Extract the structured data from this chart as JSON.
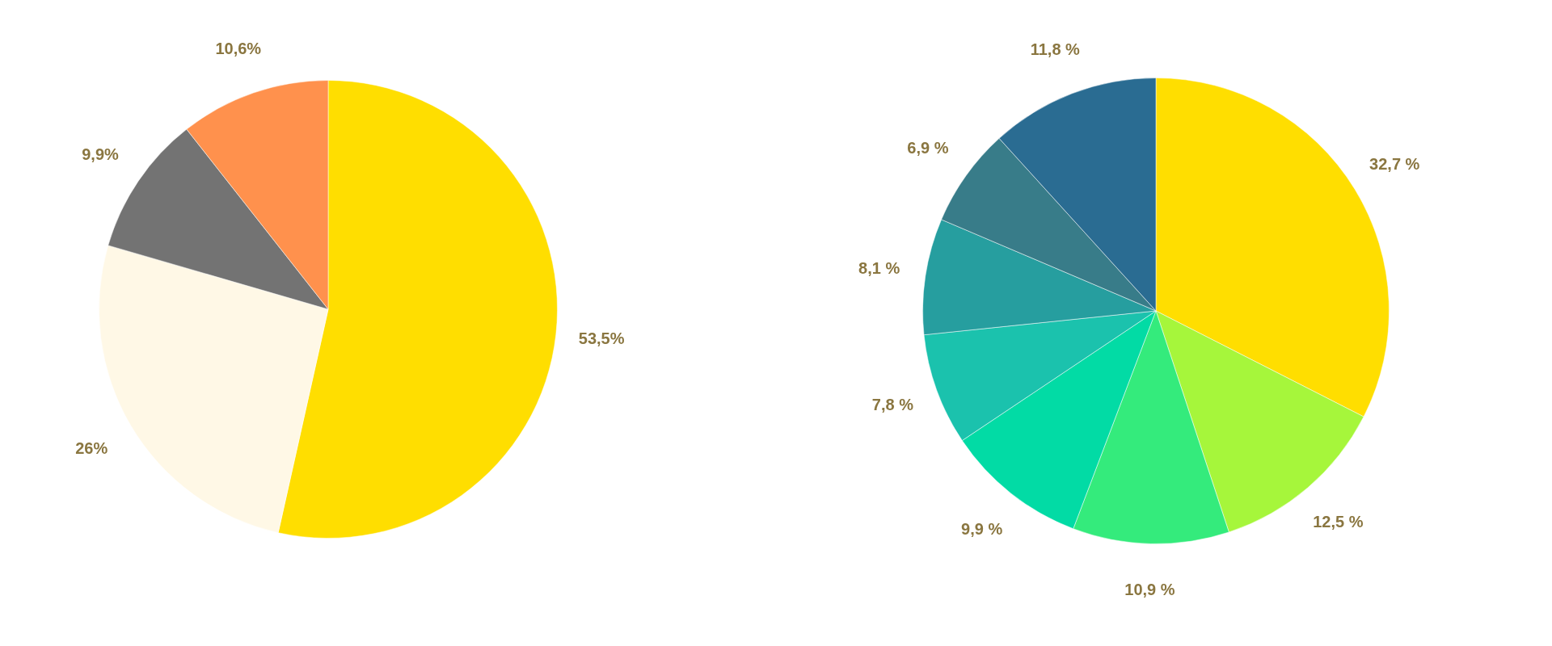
{
  "chart_data": [
    {
      "type": "pie",
      "categories": [
        null,
        null,
        null,
        null
      ],
      "values": [
        53.5,
        26,
        9.9,
        10.6
      ],
      "colors": [
        "#ffde00",
        "#fff8e6",
        "#737373",
        "#ff914d"
      ],
      "value_labels": [
        "53,5%",
        "26%",
        "9,9%",
        "10,6%"
      ]
    },
    {
      "type": "pie",
      "categories": [
        null,
        null,
        null,
        null,
        null,
        null,
        null,
        null
      ],
      "values": [
        32.7,
        12.5,
        10.9,
        9.9,
        7.8,
        8.1,
        6.9,
        11.8
      ],
      "colors": [
        "#ffde00",
        "#a6f63b",
        "#34eb7c",
        "#02dba5",
        "#1bc2ad",
        "#269e9f",
        "#387c89",
        "#2a6c92"
      ],
      "value_labels": [
        "32,7 %",
        "12,5 %",
        "10,9 %",
        "9,9 %",
        "7,8 %",
        "8,1 %",
        "6,9 %",
        "11,8 %"
      ]
    }
  ]
}
